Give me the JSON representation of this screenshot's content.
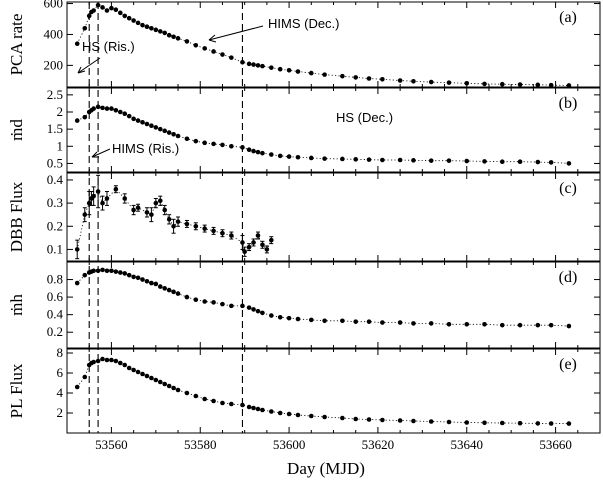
{
  "chart_data": {
    "type": "scatter",
    "xlabel": "Day (MJD)",
    "xlim": [
      53550,
      53670
    ],
    "xticks": [
      53560,
      53580,
      53600,
      53620,
      53640,
      53660
    ],
    "state_transitions": [
      53555.0,
      53557.0,
      53589.5
    ],
    "annotations": {
      "hs_rising": "HS (Ris.)",
      "hims_rising": "HIMS (Ris.)",
      "hims_declining": "HIMS (Dec.)",
      "hs_declining": "HS (Dec.)"
    },
    "panels": [
      {
        "label": "(a)",
        "ylabel": "PCA rate",
        "ylim": [
          60,
          610
        ],
        "yticks": [
          200,
          400,
          600
        ],
        "x": [
          53552.3,
          53554,
          53555,
          53555.5,
          53556,
          53557,
          53558,
          53559,
          53560,
          53561,
          53562,
          53563,
          53564,
          53565,
          53566,
          53567,
          53568,
          53569,
          53570,
          53571,
          53572,
          53573,
          53574,
          53575,
          53577,
          53579,
          53581,
          53583,
          53585,
          53587,
          53589.5,
          53591,
          53592,
          53593,
          53594,
          53596,
          53598,
          53600,
          53602,
          53605,
          53608,
          53612,
          53615,
          53618,
          53621,
          53625,
          53628,
          53632,
          53636,
          53640,
          53644,
          53648,
          53652,
          53656,
          53659,
          53663
        ],
        "y": [
          340,
          440,
          520,
          545,
          555,
          590,
          575,
          555,
          570,
          560,
          540,
          520,
          505,
          490,
          475,
          460,
          450,
          440,
          430,
          420,
          410,
          395,
          385,
          375,
          355,
          330,
          310,
          290,
          270,
          250,
          220,
          210,
          205,
          200,
          195,
          185,
          175,
          168,
          160,
          150,
          140,
          130,
          122,
          115,
          110,
          102,
          97,
          92,
          88,
          84,
          80,
          78,
          76,
          74,
          72,
          70
        ],
        "err": []
      },
      {
        "label": "(b)",
        "ylabel": "ṁd",
        "ylim": [
          0.25,
          2.7
        ],
        "yticks": [
          0.5,
          1,
          1.5,
          2,
          2.5
        ],
        "x": [
          53552.3,
          53554,
          53555,
          53555.5,
          53556,
          53557,
          53558,
          53559,
          53560,
          53561,
          53562,
          53563,
          53564,
          53565,
          53566,
          53567,
          53568,
          53569,
          53570,
          53571,
          53572,
          53573,
          53574,
          53575,
          53577,
          53579,
          53581,
          53583,
          53585,
          53587,
          53589.5,
          53591,
          53592,
          53593,
          53594,
          53596,
          53598,
          53600,
          53602,
          53605,
          53608,
          53612,
          53615,
          53618,
          53621,
          53625,
          53628,
          53632,
          53636,
          53640,
          53644,
          53648,
          53652,
          53656,
          53659,
          53663
        ],
        "y": [
          1.75,
          1.85,
          2.0,
          2.05,
          2.1,
          2.15,
          2.12,
          2.1,
          2.1,
          2.05,
          2.0,
          1.95,
          1.88,
          1.8,
          1.75,
          1.7,
          1.65,
          1.6,
          1.55,
          1.5,
          1.45,
          1.4,
          1.35,
          1.3,
          1.22,
          1.15,
          1.1,
          1.07,
          1.04,
          1.0,
          0.97,
          0.9,
          0.86,
          0.83,
          0.8,
          0.76,
          0.72,
          0.7,
          0.68,
          0.66,
          0.64,
          0.63,
          0.62,
          0.61,
          0.6,
          0.6,
          0.59,
          0.58,
          0.58,
          0.57,
          0.56,
          0.55,
          0.55,
          0.54,
          0.53,
          0.5
        ],
        "err": []
      },
      {
        "label": "(c)",
        "ylabel": "DBB Flux",
        "ylim": [
          0.05,
          0.43
        ],
        "yticks": [
          0.1,
          0.2,
          0.3,
          0.4
        ],
        "x": [
          53552.3,
          53554,
          53555,
          53555.5,
          53556,
          53557,
          53558,
          53559,
          53561,
          53563,
          53565,
          53566,
          53568,
          53569,
          53570,
          53571,
          53572,
          53573,
          53574,
          53575,
          53577,
          53579,
          53581,
          53583,
          53585,
          53587,
          53589.5,
          53590,
          53591,
          53592,
          53593,
          53594,
          53595,
          53596
        ],
        "y": [
          0.1,
          0.25,
          0.3,
          0.32,
          0.33,
          0.35,
          0.3,
          0.32,
          0.36,
          0.32,
          0.27,
          0.28,
          0.26,
          0.25,
          0.3,
          0.31,
          0.27,
          0.23,
          0.2,
          0.22,
          0.21,
          0.2,
          0.19,
          0.18,
          0.17,
          0.16,
          0.13,
          0.09,
          0.11,
          0.13,
          0.16,
          0.12,
          0.1,
          0.14
        ],
        "err": [
          0.04,
          0.03,
          0.05,
          0.03,
          0.04,
          0.07,
          0.03,
          0.03,
          0.015,
          0.02,
          0.02,
          0.015,
          0.02,
          0.03,
          0.02,
          0.02,
          0.02,
          0.02,
          0.03,
          0.02,
          0.015,
          0.015,
          0.015,
          0.015,
          0.015,
          0.015,
          0.03,
          0.02,
          0.015,
          0.015,
          0.015,
          0.015,
          0.015,
          0.015
        ]
      },
      {
        "label": "(d)",
        "ylabel": "ṁh",
        "ylim": [
          0.02,
          1.0
        ],
        "yticks": [
          0.2,
          0.4,
          0.6,
          0.8
        ],
        "x": [
          53552.3,
          53554,
          53555,
          53555.5,
          53556,
          53557,
          53558,
          53559,
          53560,
          53561,
          53562,
          53563,
          53564,
          53565,
          53566,
          53567,
          53568,
          53569,
          53570,
          53571,
          53572,
          53573,
          53574,
          53575,
          53577,
          53579,
          53581,
          53583,
          53585,
          53587,
          53589.5,
          53591,
          53592,
          53593,
          53594,
          53596,
          53598,
          53600,
          53602,
          53605,
          53608,
          53612,
          53615,
          53618,
          53621,
          53625,
          53628,
          53632,
          53636,
          53640,
          53644,
          53648,
          53652,
          53656,
          53659,
          53663
        ],
        "y": [
          0.76,
          0.85,
          0.88,
          0.89,
          0.9,
          0.9,
          0.91,
          0.9,
          0.9,
          0.89,
          0.88,
          0.87,
          0.85,
          0.83,
          0.82,
          0.8,
          0.78,
          0.76,
          0.75,
          0.72,
          0.7,
          0.68,
          0.66,
          0.64,
          0.6,
          0.57,
          0.55,
          0.54,
          0.52,
          0.5,
          0.5,
          0.48,
          0.46,
          0.44,
          0.42,
          0.39,
          0.37,
          0.36,
          0.35,
          0.34,
          0.33,
          0.33,
          0.32,
          0.32,
          0.31,
          0.31,
          0.3,
          0.3,
          0.29,
          0.29,
          0.29,
          0.28,
          0.28,
          0.28,
          0.28,
          0.27
        ],
        "err": []
      },
      {
        "label": "(e)",
        "ylabel": "PL Flux",
        "ylim": [
          0,
          8.4
        ],
        "yticks": [
          2,
          4,
          6,
          8
        ],
        "x": [
          53552.3,
          53554,
          53555,
          53555.5,
          53556,
          53557,
          53558,
          53559,
          53560,
          53561,
          53562,
          53563,
          53564,
          53565,
          53566,
          53567,
          53568,
          53569,
          53570,
          53571,
          53572,
          53573,
          53574,
          53575,
          53577,
          53579,
          53581,
          53583,
          53585,
          53587,
          53589.5,
          53591,
          53592,
          53593,
          53594,
          53596,
          53598,
          53600,
          53602,
          53605,
          53608,
          53612,
          53615,
          53618,
          53621,
          53625,
          53628,
          53632,
          53636,
          53640,
          53644,
          53648,
          53652,
          53656,
          53659,
          53663
        ],
        "y": [
          4.6,
          5.6,
          6.8,
          7.0,
          7.1,
          7.2,
          7.4,
          7.3,
          7.3,
          7.2,
          7.0,
          6.8,
          6.5,
          6.3,
          6.1,
          5.9,
          5.7,
          5.5,
          5.3,
          5.1,
          4.9,
          4.7,
          4.5,
          4.3,
          4.0,
          3.7,
          3.4,
          3.2,
          3.0,
          2.9,
          2.8,
          2.6,
          2.5,
          2.4,
          2.3,
          2.15,
          2.0,
          1.9,
          1.8,
          1.7,
          1.6,
          1.5,
          1.4,
          1.35,
          1.3,
          1.25,
          1.2,
          1.15,
          1.1,
          1.05,
          1.02,
          1.0,
          0.98,
          0.96,
          0.95,
          0.94
        ],
        "err": []
      }
    ]
  }
}
